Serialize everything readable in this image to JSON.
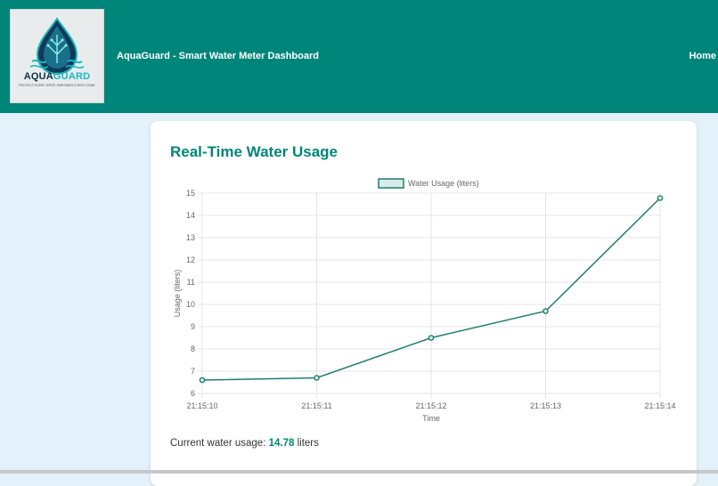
{
  "header": {
    "logo": {
      "brand_part1": "AQUA",
      "brand_part2": "GUARD",
      "tagline": "PROTECT EVERY DROP, EMPOWER EVERY HOME"
    },
    "title": "AquaGuard - Smart Water Meter Dashboard",
    "nav_home": "Home"
  },
  "card": {
    "title": "Real-Time Water Usage",
    "usage_prefix": "Current water usage:",
    "usage_value": "14.78",
    "usage_unit": "liters"
  },
  "colors": {
    "primary": "#00857a",
    "line": "#1f7f6f",
    "background": "#e3f1fb"
  },
  "chart_data": {
    "type": "line",
    "x": [
      "21:15:10",
      "21:15:11",
      "21:15:12",
      "21:15:13",
      "21:15:14"
    ],
    "series": [
      {
        "name": "Water Usage (liters)",
        "values": [
          6.6,
          6.7,
          8.5,
          9.7,
          14.78
        ]
      }
    ],
    "xlabel": "Time",
    "ylabel": "Usage (liters)",
    "ylim": [
      6,
      15
    ],
    "yticks": [
      6,
      7,
      8,
      9,
      10,
      11,
      12,
      13,
      14,
      15
    ],
    "grid": true,
    "legend": "top-center"
  }
}
